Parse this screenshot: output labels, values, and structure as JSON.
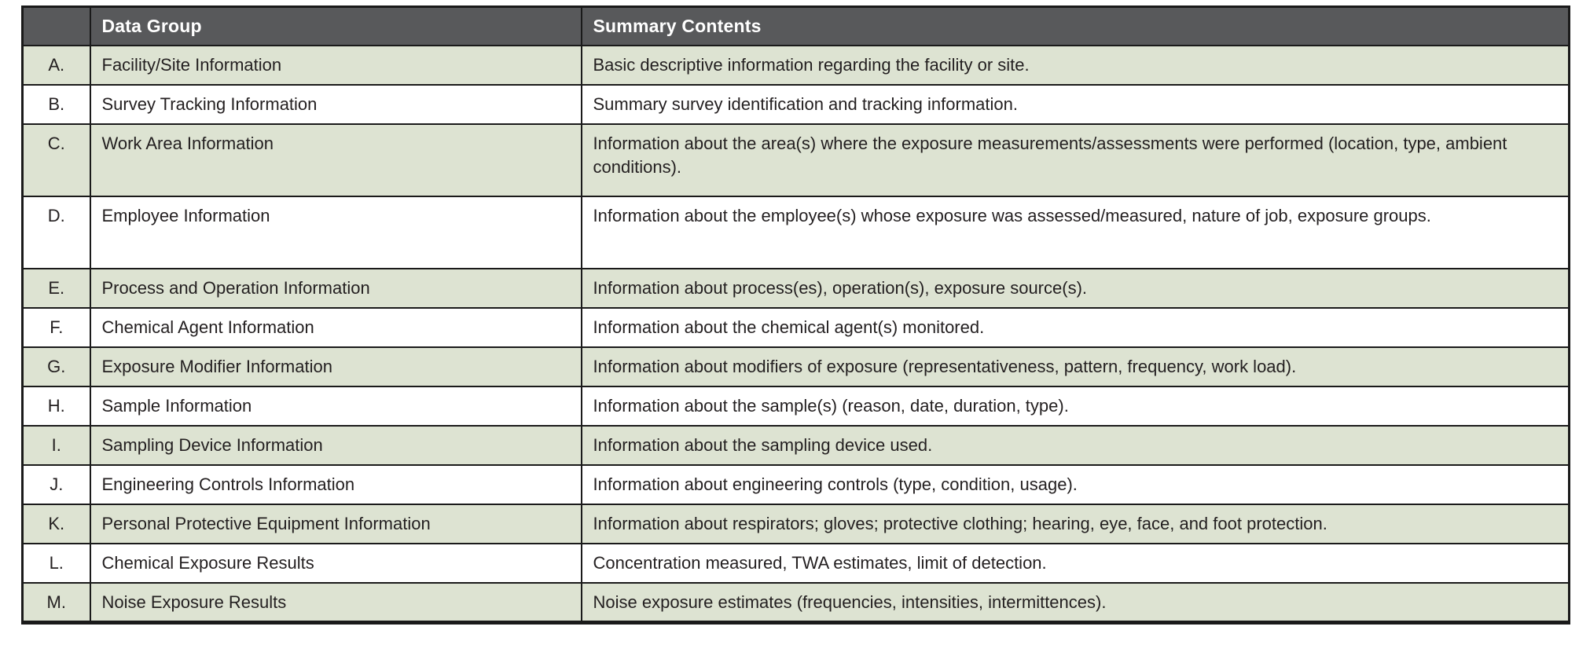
{
  "colors": {
    "page_bg": "#ffffff",
    "header_bg": "#58595b",
    "header_text": "#ffffff",
    "row_bg": "#ffffff",
    "row_alt_bg": "#dde3d2",
    "border": "#1a1a1a",
    "body_text": "#231f20"
  },
  "table": {
    "columns": [
      "",
      "Data Group",
      "Summary Contents"
    ],
    "rows": [
      {
        "letter": "A.",
        "group": "Facility/Site Information",
        "summary": "Basic descriptive information regarding the facility or site."
      },
      {
        "letter": "B.",
        "group": "Survey Tracking Information",
        "summary": "Summary survey identification and tracking information."
      },
      {
        "letter": "C.",
        "group": "Work Area Information",
        "summary": "Information about the area(s) where the exposure measurements/assessments were performed (location, type, ambient conditions)."
      },
      {
        "letter": "D.",
        "group": "Employee Information",
        "summary": "Information about the employee(s) whose exposure was assessed/measured, nature of job, exposure groups."
      },
      {
        "letter": "E.",
        "group": "Process and Operation Information",
        "summary": "Information about process(es), operation(s), exposure source(s)."
      },
      {
        "letter": "F.",
        "group": "Chemical Agent Information",
        "summary": "Information about the chemical agent(s) monitored."
      },
      {
        "letter": "G.",
        "group": "Exposure Modifier Information",
        "summary": "Information about modifiers of exposure (representativeness, pattern, frequency, work load)."
      },
      {
        "letter": "H.",
        "group": "Sample Information",
        "summary": "Information about the sample(s) (reason, date, duration, type)."
      },
      {
        "letter": "I.",
        "group": "Sampling Device Information",
        "summary": "Information about the sampling device used."
      },
      {
        "letter": "J.",
        "group": "Engineering Controls Information",
        "summary": "Information about engineering controls (type, condition, usage)."
      },
      {
        "letter": "K.",
        "group": "Personal Protective Equipment Information",
        "summary": "Information about respirators; gloves; protective clothing; hearing, eye, face, and foot protection."
      },
      {
        "letter": "L.",
        "group": "Chemical Exposure Results",
        "summary": "Concentration measured, TWA estimates, limit of detection."
      },
      {
        "letter": "M.",
        "group": "Noise Exposure Results",
        "summary": "Noise exposure estimates (frequencies, intensities, intermittences)."
      }
    ]
  }
}
